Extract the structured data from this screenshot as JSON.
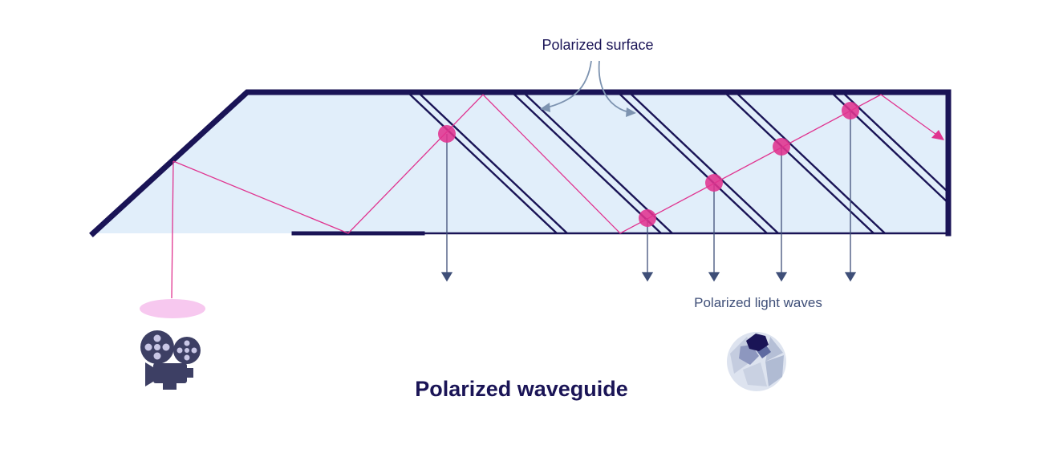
{
  "labels": {
    "surface": "Polarized surface",
    "waves": "Polarized light waves",
    "title": "Polarized waveguide"
  },
  "colors": {
    "frame": "#1a1456",
    "fill": "#e1eefa",
    "beam": "#e0338f",
    "arrow": "#3f4f78",
    "lens_spot": "#f7c8ef",
    "projector": "#3d3f64",
    "eye": "#1a1456"
  },
  "icons": [
    "projector-icon",
    "eye-icon"
  ]
}
